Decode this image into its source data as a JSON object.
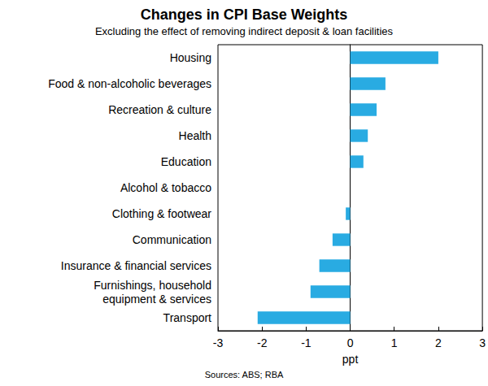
{
  "chart_data": {
    "type": "bar",
    "orientation": "horizontal",
    "title": "Changes in CPI Base Weights",
    "subtitle": "Excluding the effect of removing indirect deposit & loan facilities",
    "source": "Sources: ABS; RBA",
    "x_label": "ppt",
    "categories": [
      "Housing",
      "Food & non-alcoholic beverages",
      "Recreation & culture",
      "Health",
      "Education",
      "Alcohol & tobacco",
      "Clothing & footwear",
      "Communication",
      "Insurance & financial services",
      "Furnishings, household\nequipment & services",
      "Transport"
    ],
    "values": [
      2.0,
      0.8,
      0.6,
      0.4,
      0.3,
      0.0,
      -0.1,
      -0.4,
      -0.7,
      -0.9,
      -2.1
    ],
    "color": "#29abe2",
    "xlim": [
      -3,
      3
    ],
    "xticks": [
      -3,
      -2,
      -1,
      0,
      1,
      2,
      3
    ],
    "grid": false
  }
}
